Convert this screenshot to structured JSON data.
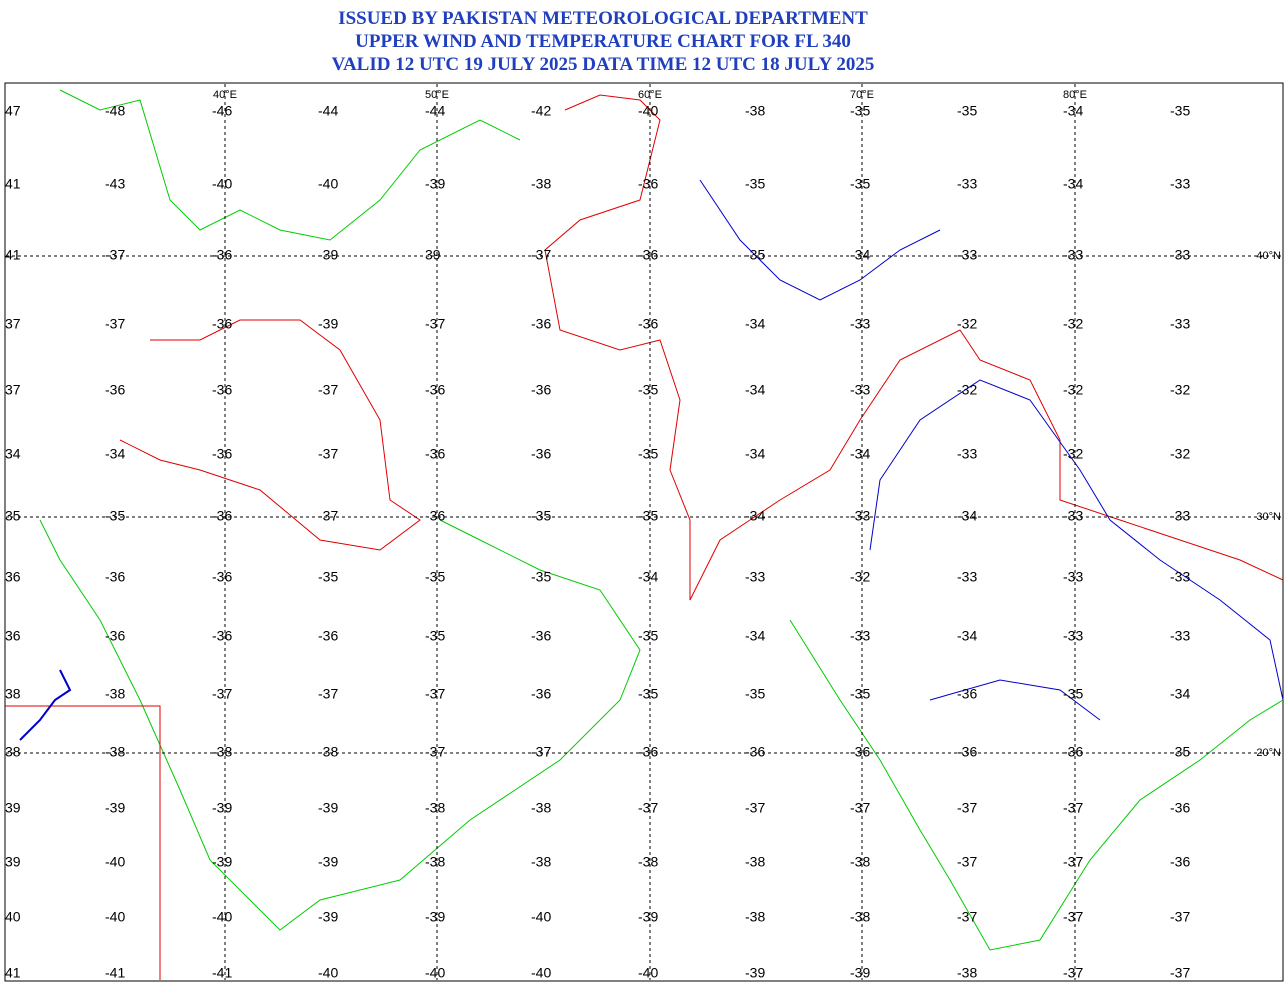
{
  "header": {
    "lines": [
      "ISSUED BY PAKISTAN METEOROLOGICAL DEPARTMENT",
      "UPPER WIND AND TEMPERATURE CHART FOR FL 340",
      "VALID 12 UTC 19 JULY 2025 DATA TIME 12 UTC 18 JULY 2025"
    ]
  },
  "map": {
    "lon_labels": [
      "40°E",
      "50°E",
      "60°E",
      "70°E",
      "80°E"
    ],
    "lat_labels": [
      "40°N",
      "30°N",
      "20°N"
    ],
    "temperatures": [
      [
        "47",
        "-48",
        "-46",
        "-44",
        "-44",
        "-42",
        "-40",
        "-38",
        "-35",
        "-35",
        "-34",
        "-35"
      ],
      [
        "41",
        "-43",
        "-40",
        "-40",
        "-39",
        "-38",
        "-36",
        "-35",
        "-35",
        "-33",
        "-34",
        "-33"
      ],
      [
        "41",
        "-37",
        "-36",
        "-39",
        "39",
        "-37",
        "-36",
        "-35",
        "-34",
        "-33",
        "-33",
        "-33"
      ],
      [
        "37",
        "-37",
        "-36",
        "-39",
        "-37",
        "-36",
        "-36",
        "-34",
        "-33",
        "-32",
        "-32",
        "-33"
      ],
      [
        "37",
        "-36",
        "-36",
        "-37",
        "-36",
        "-36",
        "-35",
        "-34",
        "-33",
        "-32",
        "-32",
        "-32"
      ],
      [
        "34",
        "-34",
        "-36",
        "-37",
        "-36",
        "-36",
        "-35",
        "-34",
        "-34",
        "-33",
        "-32",
        "-32"
      ],
      [
        "35",
        "-35",
        "-36",
        "-37",
        "-36",
        "-35",
        "-35",
        "-34",
        "-33",
        "-34",
        "-33",
        "-33"
      ],
      [
        "36",
        "-36",
        "-36",
        "-35",
        "-35",
        "-35",
        "-34",
        "-33",
        "-32",
        "-33",
        "-33",
        "-33"
      ],
      [
        "36",
        "-36",
        "-36",
        "-36",
        "-35",
        "-36",
        "-35",
        "-34",
        "-33",
        "-34",
        "-33",
        "-33"
      ],
      [
        "38",
        "-38",
        "-37",
        "-37",
        "-37",
        "-36",
        "-35",
        "-35",
        "-35",
        "-36",
        "-35",
        "-34"
      ],
      [
        "38",
        "-38",
        "-38",
        "-38",
        "-37",
        "-37",
        "-36",
        "-36",
        "-36",
        "-36",
        "-36",
        "-35"
      ],
      [
        "39",
        "-39",
        "-39",
        "-39",
        "-38",
        "-38",
        "-37",
        "-37",
        "-37",
        "-37",
        "-37",
        "-36"
      ],
      [
        "39",
        "-40",
        "-39",
        "-39",
        "-38",
        "-38",
        "-38",
        "-38",
        "-38",
        "-37",
        "-37",
        "-36"
      ],
      [
        "40",
        "-40",
        "-40",
        "-39",
        "-39",
        "-40",
        "-39",
        "-38",
        "-38",
        "-37",
        "-37",
        "-37"
      ],
      [
        "41",
        "-41",
        "-41",
        "-40",
        "-40",
        "-40",
        "-40",
        "-39",
        "-39",
        "-38",
        "-37",
        "-37"
      ]
    ]
  }
}
